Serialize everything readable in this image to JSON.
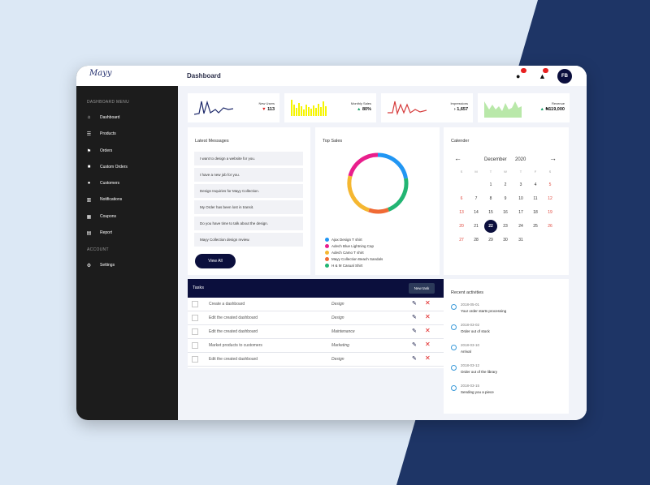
{
  "colors": {
    "accent": "#0b0f3d",
    "sidebar": "#1c1c1c",
    "bg_light": "#dce8f5",
    "bg_dark": "#1e3566",
    "up": "#1aa06a",
    "down": "#e02020"
  },
  "logo": {
    "text": "Mayy"
  },
  "header": {
    "title": "Dashboard",
    "avatar": "FB",
    "icons": [
      "chat-icon",
      "bell-icon"
    ]
  },
  "sidebar": {
    "menu_heading": "DASHBOARD MENU",
    "account_heading": "ACCOUNT",
    "items": [
      {
        "label": "Dashboard",
        "icon": "home-icon"
      },
      {
        "label": "Products",
        "icon": "products-icon"
      },
      {
        "label": "Orders",
        "icon": "orders-icon"
      },
      {
        "label": "Custom Orders",
        "icon": "custom-orders-icon"
      },
      {
        "label": "Customers",
        "icon": "customers-icon"
      },
      {
        "label": "Notifications",
        "icon": "notifications-icon"
      },
      {
        "label": "Coupons",
        "icon": "coupons-icon"
      },
      {
        "label": "Report",
        "icon": "report-icon"
      }
    ],
    "account_items": [
      {
        "label": "Settings",
        "icon": "settings-icon"
      }
    ]
  },
  "stats": [
    {
      "label": "New Users",
      "value": "113",
      "trend": "down",
      "arrow": "▼"
    },
    {
      "label": "Monthly Sales",
      "value": "80%",
      "trend": "up",
      "arrow": "▲"
    },
    {
      "label": "Impressions",
      "value": "1,657",
      "trend": "neutral",
      "arrow": "›"
    },
    {
      "label": "Revenue",
      "value": "₦119,000",
      "trend": "up",
      "arrow": "▲"
    }
  ],
  "messages": {
    "title": "Latest Messages",
    "items": [
      "I want to design a website for you.",
      "I have a new job for you.",
      "Design Inquiries for Mayy Collection.",
      "My Order has been lost in transit.",
      "Do you have time to talk about the design.",
      "Mayy Collection design review."
    ],
    "view_all": "View All"
  },
  "top_sales": {
    "title": "Top Sales",
    "legend": [
      {
        "name": "Ajax Design T shirt",
        "color": "#2196f3"
      },
      {
        "name": "Adech Blue Lightning Cap",
        "color": "#e91e8c"
      },
      {
        "name": "Adech Camo T shirt",
        "color": "#f5b731"
      },
      {
        "name": "Mayy Collection Beach Sandals",
        "color": "#f06a35"
      },
      {
        "name": "H & M Casual Shirt",
        "color": "#22b573"
      }
    ]
  },
  "calendar": {
    "title": "Calender",
    "month": "December",
    "year": "2020",
    "prev_icon": "arrow-left-icon",
    "next_icon": "arrow-right-icon",
    "weekdays": [
      "S",
      "M",
      "T",
      "W",
      "T",
      "F",
      "S"
    ],
    "weeks": [
      [
        "",
        "",
        "1",
        "2",
        "3",
        "4",
        "5"
      ],
      [
        "6",
        "7",
        "8",
        "9",
        "10",
        "11",
        "12"
      ],
      [
        "13",
        "14",
        "15",
        "16",
        "17",
        "18",
        "19"
      ],
      [
        "20",
        "21",
        "22",
        "23",
        "24",
        "25",
        "26"
      ],
      [
        "27",
        "28",
        "29",
        "30",
        "31",
        "",
        ""
      ]
    ],
    "today": "22"
  },
  "tasks": {
    "title": "Tasks",
    "new_task": "New task",
    "rows": [
      {
        "name": "Create a dashboard",
        "category": "Design"
      },
      {
        "name": "Edit the created dashboard",
        "category": "Design"
      },
      {
        "name": "Edit the created dashboard",
        "category": "Maintenance"
      },
      {
        "name": "Market products to customers",
        "category": "Marketing"
      },
      {
        "name": "Edit the created dashboard",
        "category": "Design"
      }
    ]
  },
  "activities": {
    "title": "Recent activities",
    "items": [
      {
        "date": "2018-05-01",
        "desc": "Your order starts processing"
      },
      {
        "date": "2018-03-02",
        "desc": "Order out of stock"
      },
      {
        "date": "2018-03-10",
        "desc": "Arrival"
      },
      {
        "date": "2018-03-12",
        "desc": "Order out of the library"
      },
      {
        "date": "2018-03-15",
        "desc": "Sending you a piece"
      }
    ]
  }
}
